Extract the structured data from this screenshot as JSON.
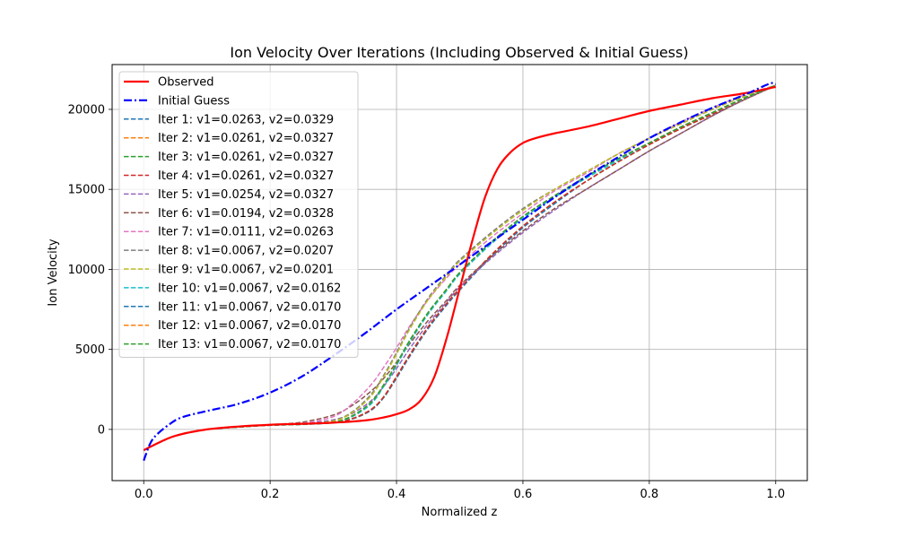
{
  "chart_data": {
    "type": "line",
    "title": "Ion Velocity Over Iterations (Including Observed & Initial Guess)",
    "xlabel": "Normalized z",
    "ylabel": "Ion Velocity",
    "xlim": [
      -0.05,
      1.05
    ],
    "ylim": [
      -3200,
      22800
    ],
    "x_ticks": [
      0.0,
      0.2,
      0.4,
      0.6,
      0.8,
      1.0
    ],
    "x_tick_labels": [
      "0.0",
      "0.2",
      "0.4",
      "0.6",
      "0.8",
      "1.0"
    ],
    "y_ticks": [
      0,
      5000,
      10000,
      15000,
      20000
    ],
    "y_tick_labels": [
      "0",
      "5000",
      "10000",
      "15000",
      "20000"
    ],
    "grid": true,
    "legend_position": "upper-left",
    "series": [
      {
        "name": "Observed",
        "color": "#ff0000",
        "style": "solid",
        "width": 2.2,
        "x": [
          0.0,
          0.02,
          0.05,
          0.1,
          0.15,
          0.2,
          0.25,
          0.3,
          0.35,
          0.38,
          0.4,
          0.42,
          0.44,
          0.46,
          0.48,
          0.5,
          0.52,
          0.54,
          0.56,
          0.58,
          0.6,
          0.62,
          0.65,
          0.7,
          0.75,
          0.8,
          0.85,
          0.9,
          0.95,
          1.0
        ],
        "y": [
          -1300,
          -900,
          -400,
          0,
          180,
          290,
          350,
          420,
          560,
          750,
          950,
          1250,
          1900,
          3300,
          5800,
          8800,
          11800,
          14500,
          16300,
          17300,
          17900,
          18200,
          18500,
          18900,
          19400,
          19900,
          20300,
          20700,
          21000,
          21400
        ]
      },
      {
        "name": "Initial Guess",
        "color": "#0000ff",
        "style": "dashdot",
        "width": 2.2,
        "x": [
          0.0,
          0.01,
          0.02,
          0.04,
          0.06,
          0.1,
          0.15,
          0.2,
          0.25,
          0.3,
          0.35,
          0.4,
          0.45,
          0.5,
          0.55,
          0.6,
          0.65,
          0.7,
          0.75,
          0.8,
          0.85,
          0.9,
          0.95,
          0.99,
          1.0
        ],
        "y": [
          -1950,
          -900,
          -350,
          300,
          750,
          1150,
          1600,
          2300,
          3300,
          4600,
          6000,
          7500,
          8900,
          10300,
          11700,
          13100,
          14500,
          15800,
          17000,
          18200,
          19200,
          20100,
          20900,
          21600,
          21600
        ]
      },
      {
        "name": "Iter 1: v1=0.0263, v2=0.0329",
        "color": "#1f77b4",
        "style": "dashed",
        "width": 1.5,
        "x": [
          0.0,
          0.05,
          0.1,
          0.15,
          0.2,
          0.25,
          0.3,
          0.33,
          0.36,
          0.38,
          0.4,
          0.42,
          0.45,
          0.48,
          0.5,
          0.55,
          0.6,
          0.65,
          0.7,
          0.75,
          0.8,
          0.85,
          0.9,
          0.95,
          1.0
        ],
        "y": [
          -1300,
          -400,
          0,
          150,
          270,
          320,
          420,
          650,
          1200,
          2000,
          3200,
          4500,
          6300,
          7800,
          8700,
          10800,
          12600,
          14100,
          15500,
          16700,
          17800,
          18800,
          19700,
          20600,
          21500
        ]
      },
      {
        "name": "Iter 2: v1=0.0261, v2=0.0327",
        "color": "#ff7f0e",
        "style": "dashed",
        "width": 1.5,
        "x": [
          0.0,
          0.05,
          0.1,
          0.15,
          0.2,
          0.25,
          0.3,
          0.33,
          0.36,
          0.38,
          0.4,
          0.42,
          0.45,
          0.48,
          0.5,
          0.55,
          0.6,
          0.65,
          0.7,
          0.75,
          0.8,
          0.85,
          0.9,
          0.95,
          1.0
        ],
        "y": [
          -1300,
          -400,
          0,
          150,
          270,
          320,
          430,
          670,
          1250,
          2050,
          3300,
          4600,
          6400,
          7900,
          8800,
          10900,
          12700,
          14200,
          15500,
          16700,
          17800,
          18800,
          19700,
          20600,
          21500
        ]
      },
      {
        "name": "Iter 3: v1=0.0261, v2=0.0327",
        "color": "#2ca02c",
        "style": "dashed",
        "width": 1.5,
        "x": [
          0.0,
          0.05,
          0.1,
          0.15,
          0.2,
          0.25,
          0.3,
          0.33,
          0.36,
          0.38,
          0.4,
          0.42,
          0.45,
          0.48,
          0.5,
          0.55,
          0.6,
          0.65,
          0.7,
          0.75,
          0.8,
          0.85,
          0.9,
          0.95,
          1.0
        ],
        "y": [
          -1300,
          -400,
          0,
          150,
          270,
          320,
          430,
          670,
          1250,
          2050,
          3300,
          4600,
          6400,
          7900,
          8800,
          10900,
          12700,
          14200,
          15500,
          16700,
          17800,
          18800,
          19700,
          20600,
          21500
        ]
      },
      {
        "name": "Iter 4: v1=0.0261, v2=0.0327",
        "color": "#d62728",
        "style": "dashed",
        "width": 1.5,
        "x": [
          0.0,
          0.05,
          0.1,
          0.15,
          0.2,
          0.25,
          0.3,
          0.33,
          0.36,
          0.38,
          0.4,
          0.42,
          0.45,
          0.48,
          0.5,
          0.55,
          0.6,
          0.65,
          0.7,
          0.75,
          0.8,
          0.85,
          0.9,
          0.95,
          1.0
        ],
        "y": [
          -1300,
          -400,
          0,
          150,
          270,
          320,
          430,
          670,
          1250,
          2050,
          3300,
          4600,
          6400,
          7900,
          8800,
          10900,
          12700,
          14200,
          15500,
          16700,
          17800,
          18800,
          19700,
          20600,
          21500
        ]
      },
      {
        "name": "Iter 5: v1=0.0254, v2=0.0327",
        "color": "#9467bd",
        "style": "dashed",
        "width": 1.5,
        "x": [
          0.0,
          0.05,
          0.1,
          0.15,
          0.2,
          0.25,
          0.3,
          0.33,
          0.36,
          0.38,
          0.4,
          0.42,
          0.45,
          0.48,
          0.5,
          0.55,
          0.6,
          0.65,
          0.7,
          0.75,
          0.8,
          0.85,
          0.9,
          0.95,
          1.0
        ],
        "y": [
          -1300,
          -400,
          0,
          150,
          280,
          360,
          600,
          1000,
          1800,
          2700,
          3800,
          5000,
          6600,
          8000,
          8900,
          10700,
          12300,
          13700,
          15000,
          16200,
          17400,
          18500,
          19600,
          20600,
          21500
        ]
      },
      {
        "name": "Iter 6: v1=0.0194, v2=0.0328",
        "color": "#8c564b",
        "style": "dashed",
        "width": 1.5,
        "x": [
          0.0,
          0.05,
          0.1,
          0.15,
          0.2,
          0.25,
          0.3,
          0.33,
          0.36,
          0.38,
          0.4,
          0.42,
          0.45,
          0.48,
          0.5,
          0.55,
          0.6,
          0.65,
          0.7,
          0.75,
          0.8,
          0.85,
          0.9,
          0.95,
          1.0
        ],
        "y": [
          -1300,
          -400,
          0,
          160,
          300,
          450,
          900,
          1500,
          2400,
          3200,
          4200,
          5300,
          6800,
          8100,
          9000,
          10800,
          12400,
          13800,
          15000,
          16200,
          17400,
          18500,
          19600,
          20600,
          21500
        ]
      },
      {
        "name": "Iter 7: v1=0.0111, v2=0.0263",
        "color": "#e377c2",
        "style": "dashed",
        "width": 1.5,
        "x": [
          0.0,
          0.05,
          0.1,
          0.15,
          0.2,
          0.25,
          0.3,
          0.33,
          0.36,
          0.38,
          0.4,
          0.42,
          0.45,
          0.48,
          0.5,
          0.55,
          0.6,
          0.65,
          0.7,
          0.75,
          0.8,
          0.85,
          0.9,
          0.95,
          1.0
        ],
        "y": [
          -1300,
          -400,
          0,
          150,
          280,
          380,
          800,
          1600,
          2800,
          3900,
          5100,
          6400,
          8100,
          9500,
          10300,
          12000,
          13500,
          14900,
          16000,
          17200,
          18200,
          19200,
          20100,
          20900,
          21500
        ]
      },
      {
        "name": "Iter 8: v1=0.0067, v2=0.0207",
        "color": "#7f7f7f",
        "style": "dashed",
        "width": 1.5,
        "x": [
          0.0,
          0.05,
          0.1,
          0.15,
          0.2,
          0.25,
          0.3,
          0.33,
          0.36,
          0.38,
          0.4,
          0.42,
          0.45,
          0.48,
          0.5,
          0.55,
          0.6,
          0.65,
          0.7,
          0.75,
          0.8,
          0.85,
          0.9,
          0.95,
          1.0
        ],
        "y": [
          -1300,
          -400,
          0,
          150,
          270,
          330,
          550,
          1100,
          2200,
          3400,
          4800,
          6300,
          8200,
          9700,
          10600,
          12300,
          13800,
          15000,
          16100,
          17200,
          18200,
          19100,
          20000,
          20800,
          21500
        ]
      },
      {
        "name": "Iter 9: v1=0.0067, v2=0.0201",
        "color": "#bcbd22",
        "style": "dashed",
        "width": 1.5,
        "x": [
          0.0,
          0.05,
          0.1,
          0.15,
          0.2,
          0.25,
          0.3,
          0.33,
          0.36,
          0.38,
          0.4,
          0.42,
          0.45,
          0.48,
          0.5,
          0.55,
          0.6,
          0.65,
          0.7,
          0.75,
          0.8,
          0.85,
          0.9,
          0.95,
          1.0
        ],
        "y": [
          -1300,
          -400,
          0,
          150,
          270,
          330,
          520,
          1050,
          2100,
          3300,
          4700,
          6200,
          8100,
          9600,
          10500,
          12200,
          13700,
          15000,
          16100,
          17200,
          18200,
          19100,
          20000,
          20800,
          21500
        ]
      },
      {
        "name": "Iter 10: v1=0.0067, v2=0.0162",
        "color": "#17becf",
        "style": "dashed",
        "width": 1.5,
        "x": [
          0.0,
          0.05,
          0.1,
          0.15,
          0.2,
          0.25,
          0.3,
          0.33,
          0.36,
          0.38,
          0.4,
          0.42,
          0.45,
          0.48,
          0.5,
          0.55,
          0.6,
          0.65,
          0.7,
          0.75,
          0.8,
          0.85,
          0.9,
          0.95,
          1.0
        ],
        "y": [
          -1300,
          -400,
          0,
          150,
          260,
          310,
          430,
          800,
          1600,
          2700,
          4000,
          5400,
          7200,
          8700,
          9700,
          11600,
          13200,
          14500,
          15700,
          16800,
          17900,
          18900,
          19800,
          20700,
          21500
        ]
      },
      {
        "name": "Iter 11: v1=0.0067, v2=0.0170",
        "color": "#1f77b4",
        "style": "dashed",
        "width": 1.5,
        "x": [
          0.0,
          0.05,
          0.1,
          0.15,
          0.2,
          0.25,
          0.3,
          0.33,
          0.36,
          0.38,
          0.4,
          0.42,
          0.45,
          0.48,
          0.5,
          0.55,
          0.6,
          0.65,
          0.7,
          0.75,
          0.8,
          0.85,
          0.9,
          0.95,
          1.0
        ],
        "y": [
          -1300,
          -400,
          0,
          150,
          260,
          320,
          450,
          850,
          1700,
          2800,
          4100,
          5500,
          7300,
          8800,
          9800,
          11700,
          13300,
          14600,
          15800,
          16900,
          17900,
          18900,
          19800,
          20700,
          21500
        ]
      },
      {
        "name": "Iter 12: v1=0.0067, v2=0.0170",
        "color": "#ff7f0e",
        "style": "dashed",
        "width": 1.5,
        "x": [
          0.0,
          0.05,
          0.1,
          0.15,
          0.2,
          0.25,
          0.3,
          0.33,
          0.36,
          0.38,
          0.4,
          0.42,
          0.45,
          0.48,
          0.5,
          0.55,
          0.6,
          0.65,
          0.7,
          0.75,
          0.8,
          0.85,
          0.9,
          0.95,
          1.0
        ],
        "y": [
          -1300,
          -400,
          0,
          150,
          260,
          320,
          450,
          850,
          1700,
          2800,
          4100,
          5500,
          7300,
          8800,
          9800,
          11700,
          13300,
          14600,
          15800,
          16900,
          17900,
          18900,
          19800,
          20700,
          21500
        ]
      },
      {
        "name": "Iter 13: v1=0.0067, v2=0.0170",
        "color": "#2ca02c",
        "style": "dashed",
        "width": 1.5,
        "x": [
          0.0,
          0.05,
          0.1,
          0.15,
          0.2,
          0.25,
          0.3,
          0.33,
          0.36,
          0.38,
          0.4,
          0.42,
          0.45,
          0.48,
          0.5,
          0.55,
          0.6,
          0.65,
          0.7,
          0.75,
          0.8,
          0.85,
          0.9,
          0.95,
          1.0
        ],
        "y": [
          -1300,
          -400,
          0,
          150,
          260,
          320,
          450,
          850,
          1700,
          2800,
          4100,
          5500,
          7300,
          8800,
          9800,
          11700,
          13300,
          14600,
          15800,
          16900,
          17900,
          18900,
          19800,
          20700,
          21500
        ]
      }
    ]
  }
}
